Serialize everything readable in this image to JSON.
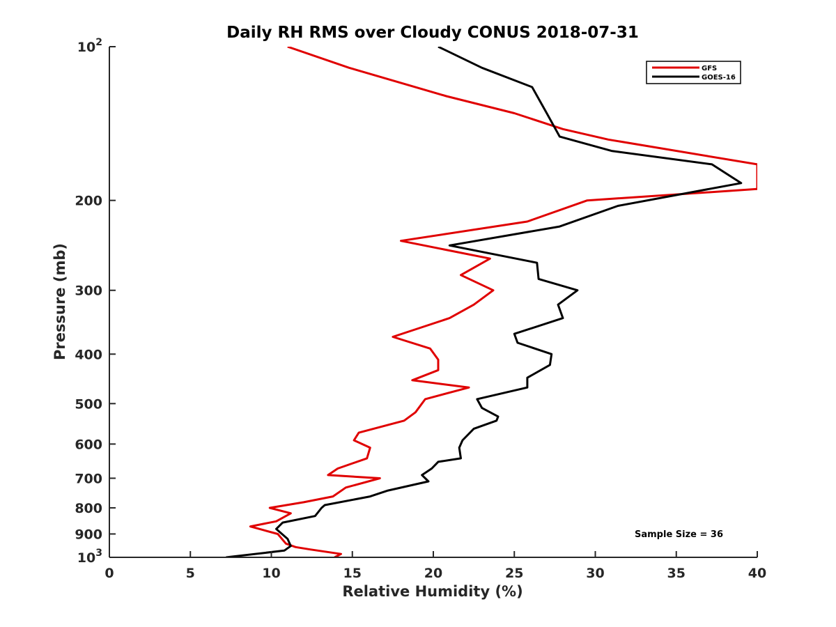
{
  "chart_data": {
    "type": "line",
    "title": "Daily RH RMS over Cloudy CONUS 2018-07-31",
    "xlabel": "Relative Humidity (%)",
    "ylabel": "Pressure (mb)",
    "xlim": [
      0,
      40
    ],
    "ylim": [
      100,
      1000
    ],
    "y_scale": "log",
    "y_reversed": true,
    "grid": false,
    "legend_placement": "top-right",
    "x_ticks": [
      "0",
      "5",
      "10",
      "15",
      "20",
      "25",
      "30",
      "35",
      "40"
    ],
    "y_ticks": [
      {
        "value": 100,
        "base": "10",
        "exp": "2"
      },
      {
        "value": 200,
        "label": "200"
      },
      {
        "value": 300,
        "label": "300"
      },
      {
        "value": 400,
        "label": "400"
      },
      {
        "value": 500,
        "label": "500"
      },
      {
        "value": 600,
        "label": "600"
      },
      {
        "value": 700,
        "label": "700"
      },
      {
        "value": 800,
        "label": "800"
      },
      {
        "value": 900,
        "label": "900"
      },
      {
        "value": 1000,
        "base": "10",
        "exp": "3"
      }
    ],
    "series": [
      {
        "name": "GFS",
        "color": "#e00000",
        "points": [
          [
            11.0,
            100
          ],
          [
            14.8,
            110
          ],
          [
            20.8,
            125
          ],
          [
            25.0,
            135
          ],
          [
            28.0,
            145
          ],
          [
            30.8,
            152
          ],
          [
            40.0,
            170
          ],
          [
            40.0,
            190
          ],
          [
            29.5,
            200
          ],
          [
            25.8,
            220
          ],
          [
            18.0,
            240
          ],
          [
            23.5,
            260
          ],
          [
            21.7,
            280
          ],
          [
            23.7,
            300
          ],
          [
            22.5,
            320
          ],
          [
            21.0,
            340
          ],
          [
            17.5,
            370
          ],
          [
            19.8,
            390
          ],
          [
            20.3,
            410
          ],
          [
            20.3,
            430
          ],
          [
            18.7,
            450
          ],
          [
            22.2,
            465
          ],
          [
            19.5,
            490
          ],
          [
            18.9,
            520
          ],
          [
            18.2,
            540
          ],
          [
            15.4,
            570
          ],
          [
            15.1,
            590
          ],
          [
            16.1,
            610
          ],
          [
            15.9,
            640
          ],
          [
            14.1,
            670
          ],
          [
            13.5,
            690
          ],
          [
            16.7,
            700
          ],
          [
            14.6,
            730
          ],
          [
            13.8,
            760
          ],
          [
            12.0,
            780
          ],
          [
            9.9,
            800
          ],
          [
            11.2,
            820
          ],
          [
            10.3,
            850
          ],
          [
            8.7,
            870
          ],
          [
            10.4,
            900
          ],
          [
            10.9,
            940
          ],
          [
            11.5,
            955
          ],
          [
            12.4,
            965
          ],
          [
            14.3,
            985
          ],
          [
            13.9,
            1000
          ]
        ]
      },
      {
        "name": "GOES-16",
        "color": "#000000",
        "points": [
          [
            20.3,
            100
          ],
          [
            23.0,
            110
          ],
          [
            26.1,
            120
          ],
          [
            27.0,
            135
          ],
          [
            27.8,
            150
          ],
          [
            31.0,
            160
          ],
          [
            37.2,
            170
          ],
          [
            39.0,
            185
          ],
          [
            31.4,
            205
          ],
          [
            27.8,
            225
          ],
          [
            21.0,
            245
          ],
          [
            26.4,
            265
          ],
          [
            26.5,
            285
          ],
          [
            28.9,
            300
          ],
          [
            27.7,
            320
          ],
          [
            28.0,
            340
          ],
          [
            25.0,
            365
          ],
          [
            25.2,
            380
          ],
          [
            27.3,
            400
          ],
          [
            27.2,
            420
          ],
          [
            25.8,
            445
          ],
          [
            25.8,
            465
          ],
          [
            22.7,
            490
          ],
          [
            23.0,
            510
          ],
          [
            24.0,
            530
          ],
          [
            23.9,
            540
          ],
          [
            22.5,
            560
          ],
          [
            21.8,
            590
          ],
          [
            21.6,
            610
          ],
          [
            21.7,
            640
          ],
          [
            20.3,
            650
          ],
          [
            19.9,
            670
          ],
          [
            19.3,
            690
          ],
          [
            19.7,
            710
          ],
          [
            17.2,
            740
          ],
          [
            16.1,
            760
          ],
          [
            13.3,
            790
          ],
          [
            13.1,
            800
          ],
          [
            12.7,
            830
          ],
          [
            10.7,
            855
          ],
          [
            10.3,
            880
          ],
          [
            11.0,
            920
          ],
          [
            11.2,
            950
          ],
          [
            10.8,
            970
          ],
          [
            7.2,
            1000
          ]
        ]
      }
    ],
    "annotation": "Sample Size = 36"
  }
}
